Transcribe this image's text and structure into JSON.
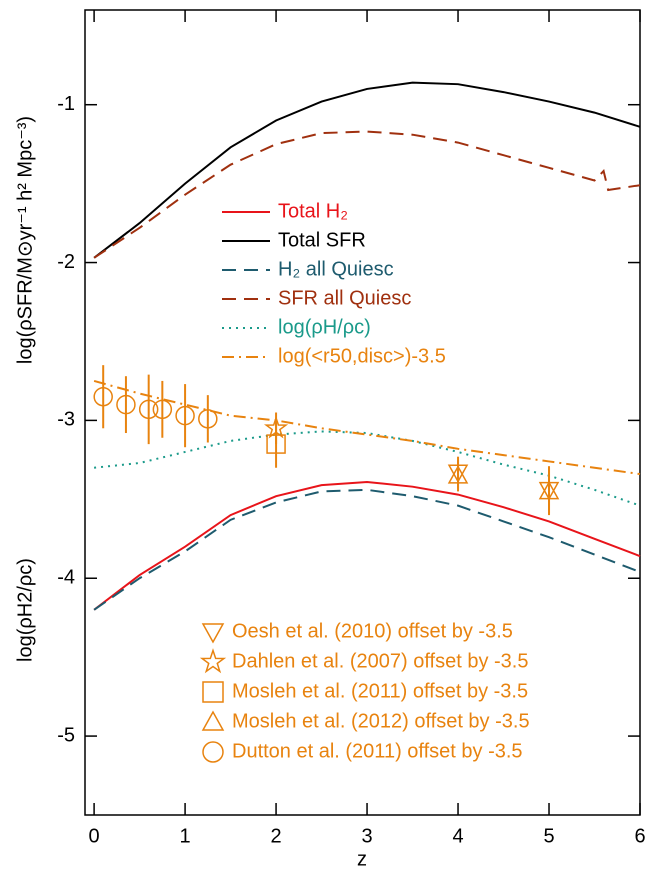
{
  "chart_data": {
    "type": "line",
    "x_label": "z",
    "y_label_top": "log(ρSFR/M⊙yr⁻¹ h² Mpc⁻³)",
    "y_label_bottom": "log(ρH2/ρc)",
    "xlim": [
      -0.1,
      6
    ],
    "xticks": [
      0,
      1,
      2,
      3,
      4,
      5,
      6
    ],
    "ylim": [
      -5.5,
      -0.4
    ],
    "yticks": [
      -5,
      -4,
      -3,
      -2,
      -1
    ],
    "series": [
      {
        "name": "Total H₂",
        "color": "#e8141a",
        "dash": "solid",
        "x": [
          0,
          0.5,
          1,
          1.5,
          2,
          2.5,
          3,
          3.5,
          4,
          4.5,
          5,
          5.5,
          6
        ],
        "values": [
          -4.2,
          -3.98,
          -3.8,
          -3.6,
          -3.48,
          -3.41,
          -3.39,
          -3.42,
          -3.47,
          -3.55,
          -3.64,
          -3.75,
          -3.86
        ]
      },
      {
        "name": "Total SFR",
        "color": "#000000",
        "dash": "solid",
        "x": [
          0,
          0.5,
          1,
          1.5,
          2,
          2.5,
          3,
          3.5,
          4,
          4.5,
          5,
          5.5,
          6
        ],
        "values": [
          -1.97,
          -1.75,
          -1.5,
          -1.27,
          -1.1,
          -0.98,
          -0.9,
          -0.86,
          -0.87,
          -0.92,
          -0.98,
          -1.05,
          -1.14
        ]
      },
      {
        "name": "H₂ all Quiesc",
        "color": "#1e5b6e",
        "dash": "dashed",
        "x": [
          0,
          0.5,
          1,
          1.5,
          2,
          2.5,
          3,
          3.5,
          4,
          4.5,
          5,
          5.5,
          6
        ],
        "values": [
          -4.2,
          -4.0,
          -3.83,
          -3.63,
          -3.52,
          -3.45,
          -3.44,
          -3.48,
          -3.54,
          -3.64,
          -3.74,
          -3.85,
          -3.96
        ]
      },
      {
        "name": "SFR all Quiesc",
        "color": "#a0300f",
        "dash": "dashed",
        "x": [
          0,
          0.5,
          1,
          1.5,
          2,
          2.5,
          3,
          3.5,
          4,
          4.5,
          5,
          5.5,
          5.6,
          5.65,
          6
        ],
        "values": [
          -1.97,
          -1.78,
          -1.57,
          -1.38,
          -1.25,
          -1.18,
          -1.17,
          -1.19,
          -1.24,
          -1.32,
          -1.4,
          -1.48,
          -1.42,
          -1.54,
          -1.51
        ]
      },
      {
        "name": "log(ρH/ρc)",
        "color": "#1a9a8a",
        "dash": "dotted",
        "x": [
          0,
          0.5,
          1,
          1.5,
          2,
          2.5,
          3,
          3.5,
          4,
          4.5,
          5,
          5.5,
          6
        ],
        "values": [
          -3.3,
          -3.27,
          -3.2,
          -3.13,
          -3.09,
          -3.07,
          -3.08,
          -3.13,
          -3.2,
          -3.28,
          -3.35,
          -3.44,
          -3.54
        ]
      },
      {
        "name": "log(<r50,disc>)-3.5",
        "color": "#e8830f",
        "dash": "dashdot",
        "x": [
          0,
          0.5,
          1,
          1.5,
          2,
          2.5,
          3,
          3.5,
          4,
          4.5,
          5,
          5.5,
          6
        ],
        "values": [
          -2.75,
          -2.83,
          -2.9,
          -2.97,
          -3.0,
          -3.05,
          -3.09,
          -3.13,
          -3.18,
          -3.22,
          -3.26,
          -3.3,
          -3.34
        ]
      }
    ],
    "observations": [
      {
        "name": "Oesh et al. (2010) offset by -3.5",
        "marker": "triangle-down",
        "color": "#e8830f",
        "x": [
          4,
          5
        ],
        "values": [
          -3.33,
          -3.44
        ],
        "errors": [
          0.1,
          0.15
        ]
      },
      {
        "name": "Dahlen et al. (2007) offset by -3.5",
        "marker": "star",
        "color": "#e8830f",
        "x": [
          2
        ],
        "values": [
          -3.05
        ],
        "errors": [
          0.1
        ]
      },
      {
        "name": "Mosleh et al. (2011) offset by -3.5",
        "marker": "square",
        "color": "#e8830f",
        "x": [
          2
        ],
        "values": [
          -3.15
        ],
        "errors": [
          0.15
        ]
      },
      {
        "name": "Mosleh et al. (2012) offset by -3.5",
        "marker": "triangle-up",
        "color": "#e8830f",
        "x": [
          4,
          5
        ],
        "values": [
          -3.35,
          -3.45
        ],
        "errors": [
          0.1,
          0.15
        ]
      },
      {
        "name": "Dutton et al. (2011) offset by -3.5",
        "marker": "circle",
        "color": "#e8830f",
        "x": [
          0.1,
          0.35,
          0.6,
          0.75,
          1.0,
          1.25
        ],
        "values": [
          -2.85,
          -2.9,
          -2.93,
          -2.93,
          -2.97,
          -2.99
        ],
        "errors": [
          0.2,
          0.18,
          0.22,
          0.18,
          0.2,
          0.15
        ]
      }
    ]
  }
}
